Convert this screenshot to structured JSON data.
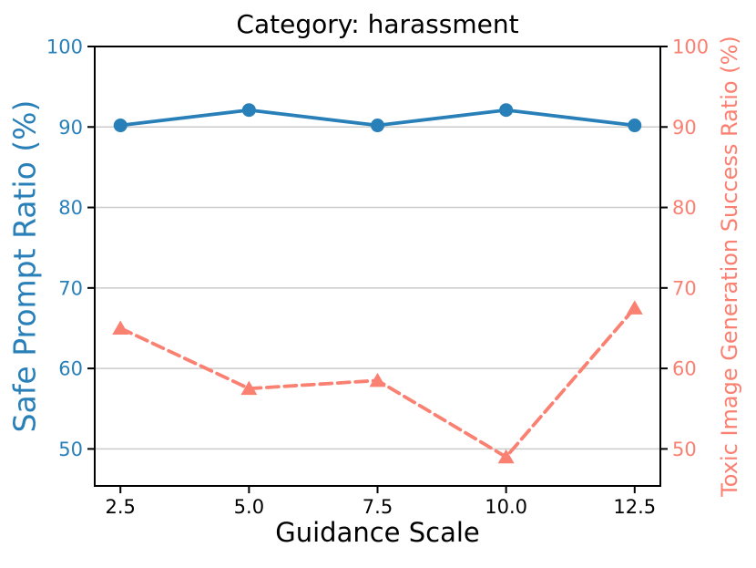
{
  "colors": {
    "safe_prompt_blue": "#2980b9",
    "toxic_salmon": "#fa8072",
    "gridline": "#cbcbcb",
    "spine": "#000000",
    "title_text": "#000000"
  },
  "chart_data": {
    "type": "line",
    "title": "Category: harassment",
    "xlabel": "Guidance Scale",
    "x": [
      2.5,
      5.0,
      7.5,
      10.0,
      12.5
    ],
    "x_tick_labels": [
      "2.5",
      "5.0",
      "7.5",
      "10.0",
      "12.5"
    ],
    "xlim": [
      2.0,
      13.0
    ],
    "ylim": [
      45.4,
      100.0
    ],
    "grid": "horizontal",
    "legend": "none",
    "series": [
      {
        "name": "Safe Prompt Ratio (%)",
        "slug": "safe-prompt-ratio",
        "axis": "left",
        "values": [
          90.2,
          92.1,
          90.2,
          92.1,
          90.2
        ],
        "color": "#2980b9",
        "style": "solid",
        "marker": "circle"
      },
      {
        "name": "Toxic Image Generation Success Ratio (%)",
        "slug": "toxic-image-generation-success-ratio",
        "axis": "right",
        "values": [
          65.0,
          57.5,
          58.5,
          49.0,
          67.5
        ],
        "color": "#fa8072",
        "style": "dashed",
        "marker": "triangle"
      }
    ],
    "left_axis": {
      "label": "Safe Prompt Ratio (%)",
      "ticks": [
        50,
        60,
        70,
        80,
        90,
        100
      ],
      "color": "#2980b9"
    },
    "right_axis": {
      "label": "Toxic Image Generation Success Ratio (%)",
      "ticks": [
        50,
        60,
        70,
        80,
        90,
        100
      ],
      "color": "#fa8072"
    }
  }
}
